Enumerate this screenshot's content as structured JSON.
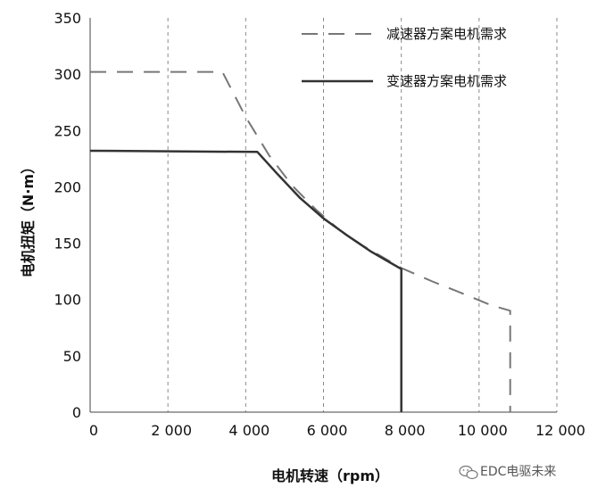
{
  "chart_data": {
    "type": "line",
    "xlabel": "电机转速（rpm）",
    "ylabel": "电机扭矩（N·m）",
    "xlim": [
      0,
      12000
    ],
    "ylim": [
      0,
      350
    ],
    "x_ticks": [
      0,
      2000,
      4000,
      6000,
      8000,
      10000,
      12000
    ],
    "x_tick_labels": [
      "0",
      "2 000",
      "4 000",
      "6 000",
      "8 000",
      "10 000",
      "12 000"
    ],
    "y_ticks": [
      0,
      50,
      100,
      150,
      200,
      250,
      300,
      350
    ],
    "y_tick_labels": [
      "0",
      "50",
      "100",
      "150",
      "200",
      "250",
      "300",
      "350"
    ],
    "grid": "vertical-dashed",
    "legend_position": "top-right",
    "series": [
      {
        "name": "减速器方案电机需求",
        "style": "dashed",
        "color": "#777777",
        "points": [
          [
            0,
            302
          ],
          [
            3400,
            302
          ],
          [
            4000,
            262
          ],
          [
            4600,
            228
          ],
          [
            5200,
            201
          ],
          [
            5800,
            180
          ],
          [
            6400,
            162
          ],
          [
            7000,
            148
          ],
          [
            7600,
            136
          ],
          [
            8000,
            128
          ],
          [
            8800,
            116
          ],
          [
            9600,
            105
          ],
          [
            10300,
            95
          ],
          [
            10800,
            90
          ],
          [
            10800,
            0
          ]
        ]
      },
      {
        "name": "变速器方案电机需求",
        "style": "solid",
        "color": "#333333",
        "points": [
          [
            0,
            232
          ],
          [
            4300,
            231
          ],
          [
            4800,
            212
          ],
          [
            5400,
            190
          ],
          [
            6000,
            172
          ],
          [
            6600,
            157
          ],
          [
            7200,
            143
          ],
          [
            7600,
            135
          ],
          [
            8000,
            127
          ],
          [
            8000,
            0
          ]
        ]
      }
    ]
  },
  "watermark": {
    "text": "EDC电驱未来",
    "icon": "wechat-icon"
  }
}
